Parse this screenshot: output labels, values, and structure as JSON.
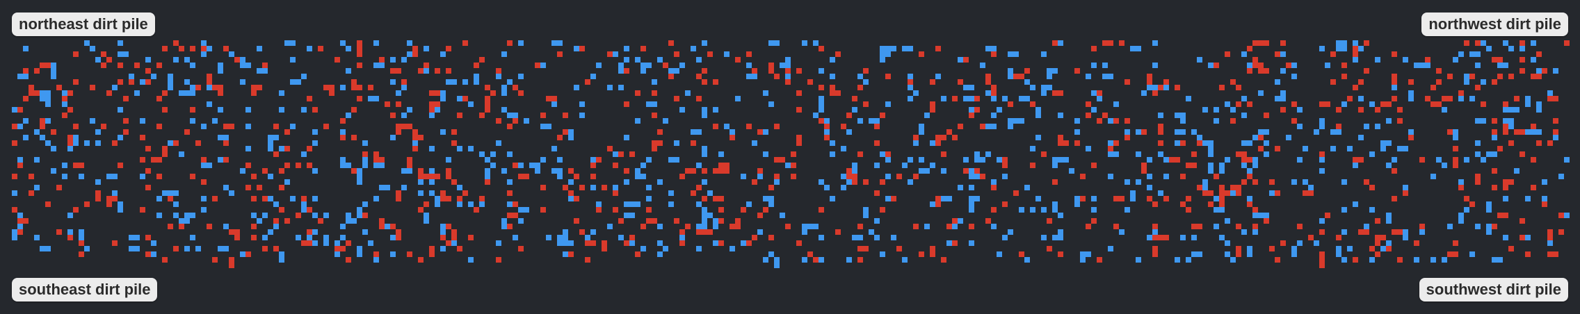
{
  "labels": {
    "northeast": "northeast dirt pile",
    "northwest": "northwest dirt pile",
    "southeast": "southeast dirt pile",
    "southwest": "southwest dirt pile"
  },
  "colors": {
    "background": "#25282d",
    "red_particle": "#d93a2b",
    "blue_particle": "#3f98f0",
    "label_background": "#ececec",
    "label_text": "#2b2b2b"
  },
  "particles": {
    "kinds": [
      "red",
      "blue"
    ]
  }
}
